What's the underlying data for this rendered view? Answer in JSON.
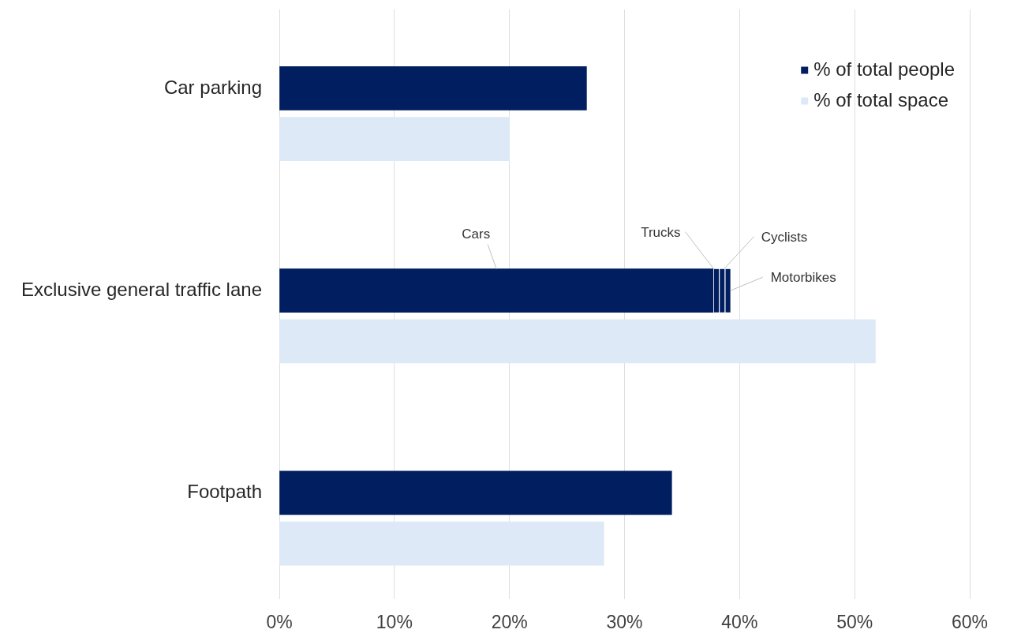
{
  "chart_data": {
    "type": "bar",
    "orientation": "horizontal",
    "stacked": true,
    "categories": [
      "Car parking",
      null,
      null,
      null,
      "Exclusive general traffic lane",
      null,
      null,
      null,
      "Footpath",
      null
    ],
    "series": [
      {
        "name": "% of total people",
        "color": "#001e60",
        "values": [
          26.7,
          null,
          null,
          null,
          null,
          null,
          null,
          null,
          34.1,
          null
        ]
      },
      {
        "name": "Cars",
        "color": "#001e60",
        "values": [
          null,
          null,
          null,
          null,
          37.7,
          null,
          null,
          null,
          null,
          null
        ]
      },
      {
        "name": "Trucks",
        "color": "#001e60",
        "values": [
          null,
          null,
          null,
          null,
          0.5,
          null,
          null,
          null,
          null,
          null
        ]
      },
      {
        "name": "Cyclists",
        "color": "#001e60",
        "values": [
          null,
          null,
          null,
          null,
          0.5,
          null,
          null,
          null,
          null,
          null
        ]
      },
      {
        "name": "Motorbikes",
        "color": "#001e60",
        "values": [
          null,
          null,
          null,
          null,
          0.5,
          null,
          null,
          null,
          null,
          null
        ]
      },
      {
        "name": "% of total space",
        "color": "#dde9f6",
        "values": [
          null,
          20,
          null,
          null,
          null,
          51.8,
          null,
          null,
          null,
          28.2
        ]
      }
    ],
    "xlim": [
      0,
      60
    ],
    "xticks": [
      {
        "value": 0,
        "label": "0%"
      },
      {
        "value": 10,
        "label": "10%"
      },
      {
        "value": 20,
        "label": "20%"
      },
      {
        "value": 30,
        "label": "30%"
      },
      {
        "value": 40,
        "label": "40%"
      },
      {
        "value": 50,
        "label": "50%"
      },
      {
        "value": 60,
        "label": "60%"
      }
    ],
    "grid": "x",
    "legend": "top right"
  }
}
